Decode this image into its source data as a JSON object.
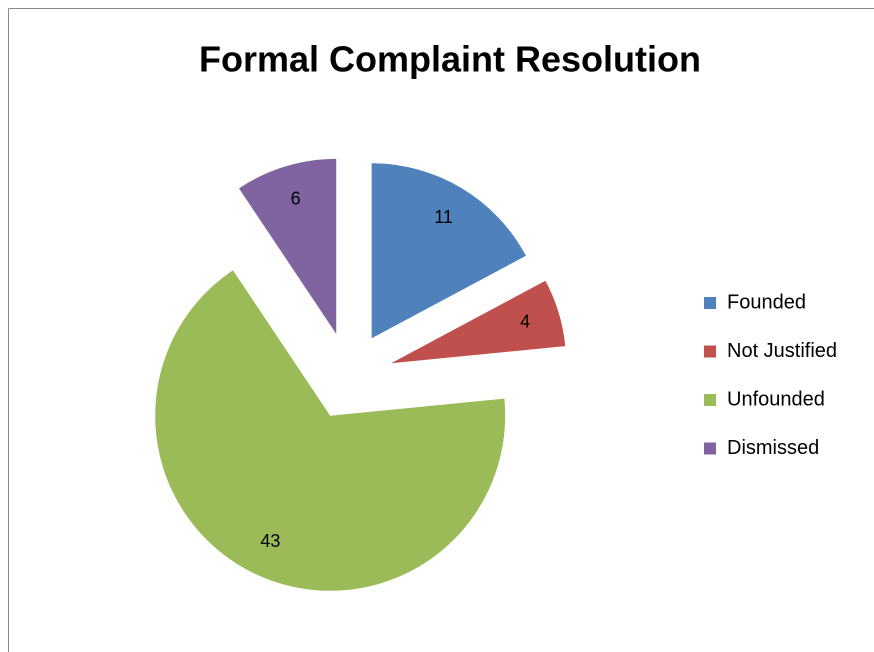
{
  "chart_data": {
    "type": "pie",
    "title": "Formal Complaint Resolution",
    "categories": [
      "Founded",
      "Not Justified",
      "Unfounded",
      "Dismissed"
    ],
    "values": [
      11,
      4,
      43,
      6
    ],
    "colors": [
      "#4f81bd",
      "#c0504d",
      "#9bbb59",
      "#8064a2"
    ],
    "exploded": true,
    "legend": "right"
  }
}
